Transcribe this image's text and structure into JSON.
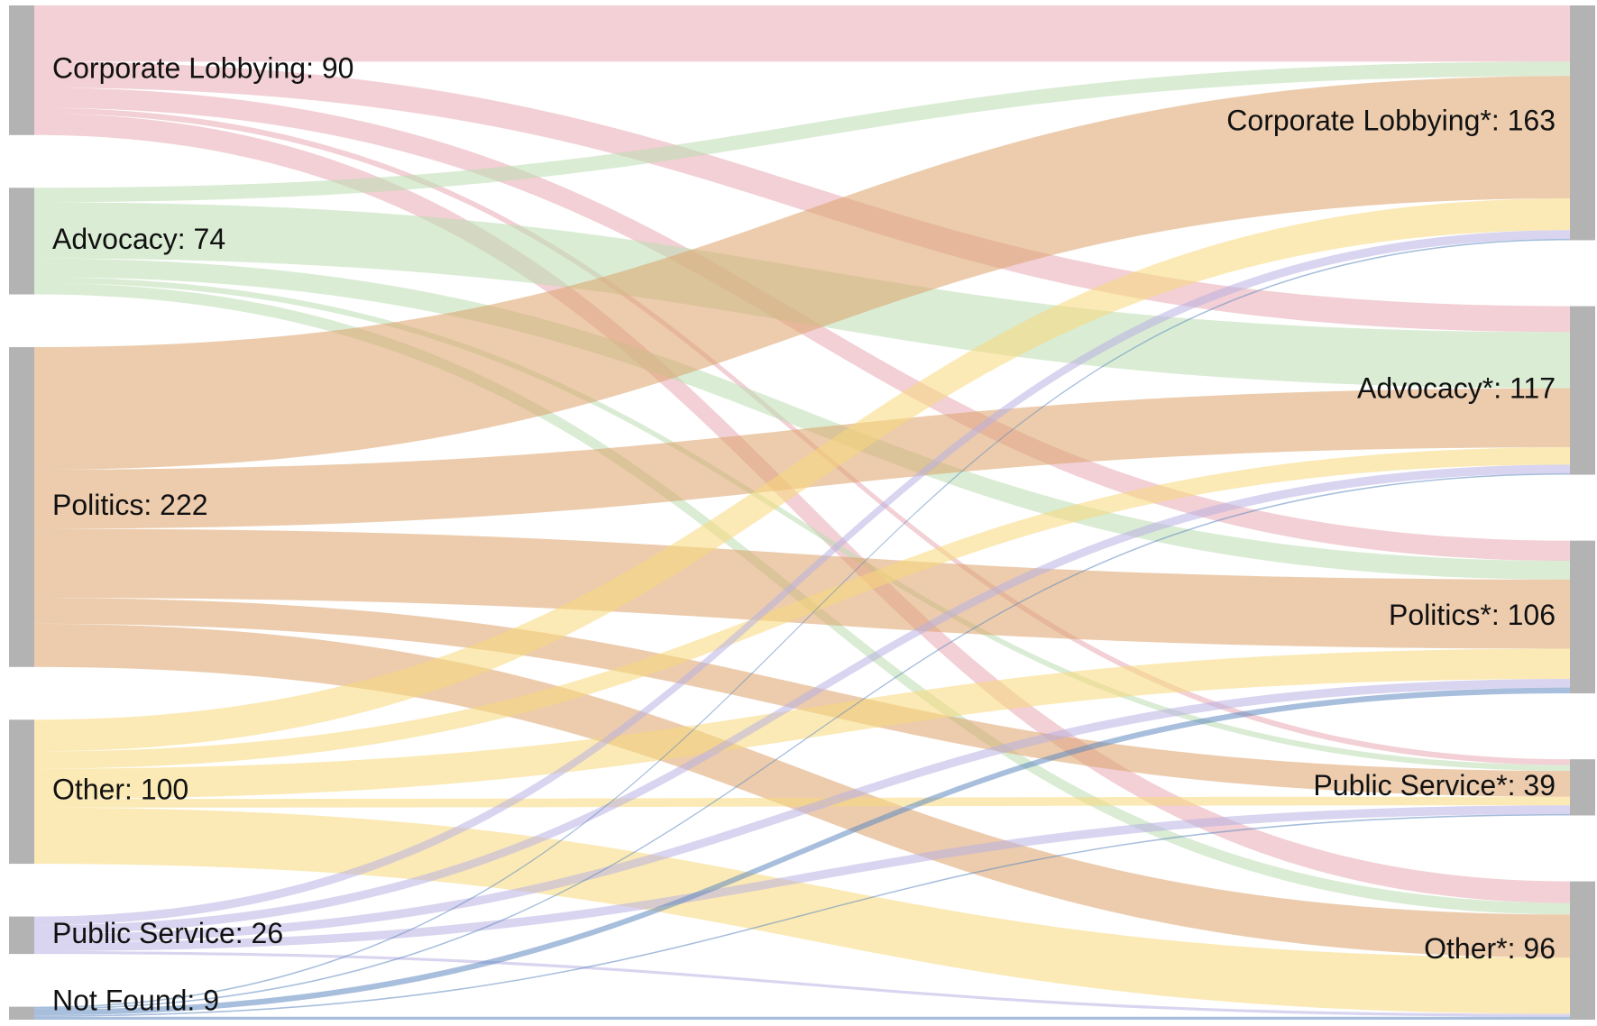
{
  "chart_data": {
    "type": "sankey",
    "nodes": [
      {
        "label": "Corporate Lobbying: 90",
        "value": 90,
        "color": "#e8a9b2"
      },
      {
        "label": "Advocacy: 74",
        "value": 74,
        "color": "#bcdcb0"
      },
      {
        "label": "Politics: 222",
        "value": 222,
        "color": "#dca26a"
      },
      {
        "label": "Other: 100",
        "value": 100,
        "color": "#f7d97a"
      },
      {
        "label": "Public Service: 26",
        "value": 26,
        "color": "#b9b0e2"
      },
      {
        "label": "Not Found: 9",
        "value": 9,
        "color": "#5f88bf"
      },
      {
        "label": "Corporate Lobbying*: 163",
        "value": 163
      },
      {
        "label": "Advocacy*: 117",
        "value": 117
      },
      {
        "label": "Politics*: 106",
        "value": 106
      },
      {
        "label": "Public Service*: 39",
        "value": 39
      },
      {
        "label": "Other*: 96",
        "value": 96
      }
    ],
    "links": [
      {
        "source": 0,
        "target": 6,
        "value": 39
      },
      {
        "source": 0,
        "target": 7,
        "value": 18
      },
      {
        "source": 0,
        "target": 8,
        "value": 14
      },
      {
        "source": 0,
        "target": 9,
        "value": 4
      },
      {
        "source": 0,
        "target": 10,
        "value": 15
      },
      {
        "source": 1,
        "target": 6,
        "value": 10
      },
      {
        "source": 1,
        "target": 7,
        "value": 39
      },
      {
        "source": 1,
        "target": 8,
        "value": 13
      },
      {
        "source": 1,
        "target": 9,
        "value": 4
      },
      {
        "source": 1,
        "target": 10,
        "value": 8
      },
      {
        "source": 2,
        "target": 6,
        "value": 85
      },
      {
        "source": 2,
        "target": 7,
        "value": 41
      },
      {
        "source": 2,
        "target": 8,
        "value": 48
      },
      {
        "source": 2,
        "target": 9,
        "value": 18
      },
      {
        "source": 2,
        "target": 10,
        "value": 30
      },
      {
        "source": 3,
        "target": 6,
        "value": 22
      },
      {
        "source": 3,
        "target": 7,
        "value": 12
      },
      {
        "source": 3,
        "target": 8,
        "value": 21
      },
      {
        "source": 3,
        "target": 9,
        "value": 6
      },
      {
        "source": 3,
        "target": 10,
        "value": 39
      },
      {
        "source": 4,
        "target": 6,
        "value": 6
      },
      {
        "source": 4,
        "target": 7,
        "value": 6
      },
      {
        "source": 4,
        "target": 8,
        "value": 6
      },
      {
        "source": 4,
        "target": 9,
        "value": 6
      },
      {
        "source": 4,
        "target": 10,
        "value": 2
      },
      {
        "source": 5,
        "target": 6,
        "value": 1
      },
      {
        "source": 5,
        "target": 7,
        "value": 1
      },
      {
        "source": 5,
        "target": 8,
        "value": 4
      },
      {
        "source": 5,
        "target": 9,
        "value": 1
      },
      {
        "source": 5,
        "target": 10,
        "value": 2
      }
    ],
    "node_color": "#b3b3b3"
  }
}
